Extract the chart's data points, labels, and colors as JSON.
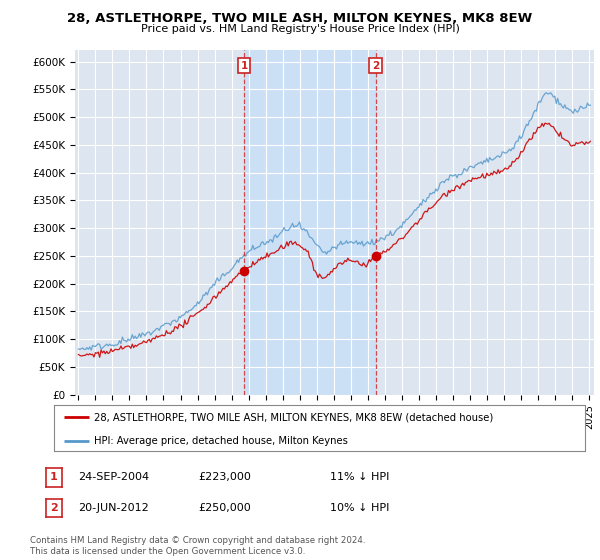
{
  "title": "28, ASTLETHORPE, TWO MILE ASH, MILTON KEYNES, MK8 8EW",
  "subtitle": "Price paid vs. HM Land Registry's House Price Index (HPI)",
  "bg_color": "#ffffff",
  "plot_bg_color": "#dde6f0",
  "shade_color": "#cce0f5",
  "legend_line1": "28, ASTLETHORPE, TWO MILE ASH, MILTON KEYNES, MK8 8EW (detached house)",
  "legend_line2": "HPI: Average price, detached house, Milton Keynes",
  "annotation1": {
    "label": "1",
    "date": "24-SEP-2004",
    "price": "£223,000",
    "pct": "11% ↓ HPI"
  },
  "annotation2": {
    "label": "2",
    "date": "20-JUN-2012",
    "price": "£250,000",
    "pct": "10% ↓ HPI"
  },
  "footer": "Contains HM Land Registry data © Crown copyright and database right 2024.\nThis data is licensed under the Open Government Licence v3.0.",
  "red_color": "#cc0000",
  "blue_color": "#5599cc",
  "annotation_color": "#cc2222",
  "sale1_x": 2004.73,
  "sale1_y": 223000,
  "sale2_x": 2012.47,
  "sale2_y": 250000,
  "ylim": [
    0,
    620000
  ],
  "yticks": [
    0,
    50000,
    100000,
    150000,
    200000,
    250000,
    300000,
    350000,
    400000,
    450000,
    500000,
    550000,
    600000
  ],
  "ytick_labels": [
    "£0",
    "£50K",
    "£100K",
    "£150K",
    "£200K",
    "£250K",
    "£300K",
    "£350K",
    "£400K",
    "£450K",
    "£500K",
    "£550K",
    "£600K"
  ],
  "xlim_start": 1994.8,
  "xlim_end": 2025.3
}
